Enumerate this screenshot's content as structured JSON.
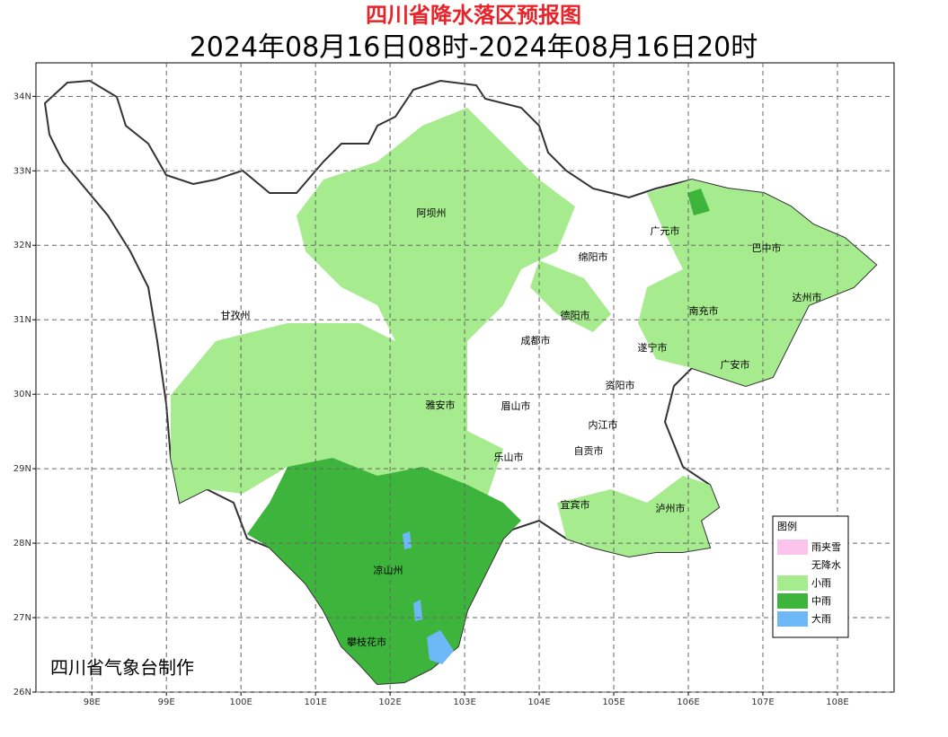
{
  "header": {
    "title": "四川省降水落区预报图",
    "subtitle": "2024年08月16日08时-2024年08月16日20时"
  },
  "map": {
    "xlim": [
      97.25,
      108.76
    ],
    "ylim": [
      26,
      34.45
    ],
    "xticks": [
      {
        "value": 98,
        "label": "98E"
      },
      {
        "value": 99,
        "label": "99E"
      },
      {
        "value": 100,
        "label": "100E"
      },
      {
        "value": 101,
        "label": "101E"
      },
      {
        "value": 102,
        "label": "102E"
      },
      {
        "value": 103,
        "label": "103E"
      },
      {
        "value": 104,
        "label": "104E"
      },
      {
        "value": 105,
        "label": "105E"
      },
      {
        "value": 106,
        "label": "106E"
      },
      {
        "value": 107,
        "label": "107E"
      },
      {
        "value": 108,
        "label": "108E"
      }
    ],
    "yticks": [
      {
        "value": 26,
        "label": "26N"
      },
      {
        "value": 27,
        "label": "27N"
      },
      {
        "value": 28,
        "label": "28N"
      },
      {
        "value": 29,
        "label": "29N"
      },
      {
        "value": 30,
        "label": "30N"
      },
      {
        "value": 31,
        "label": "31N"
      },
      {
        "value": 32,
        "label": "32N"
      },
      {
        "value": 33,
        "label": "33N"
      },
      {
        "value": 34,
        "label": "34N"
      }
    ],
    "grid": true,
    "regions": [
      "阿坝州",
      "广元市",
      "巴中市",
      "绵阳市",
      "达州市",
      "甘孜州",
      "德阳市",
      "南充市",
      "成都市",
      "遂宁市",
      "广安市",
      "资阳市",
      "雅安市",
      "眉山市",
      "内江市",
      "自贡市",
      "乐山市",
      "宜宾市",
      "泸州市",
      "凉山州",
      "攀枝花市"
    ]
  },
  "legend": {
    "title": "图例",
    "items": [
      {
        "label": "雨夹雪",
        "color": "#f9c3ec"
      },
      {
        "label": "无降水",
        "color": "#ffffff"
      },
      {
        "label": "小雨",
        "color": "#a6ec8e"
      },
      {
        "label": "中雨",
        "color": "#3db53d"
      },
      {
        "label": "大雨",
        "color": "#6db9f7"
      }
    ]
  },
  "credit": "四川省气象台制作"
}
